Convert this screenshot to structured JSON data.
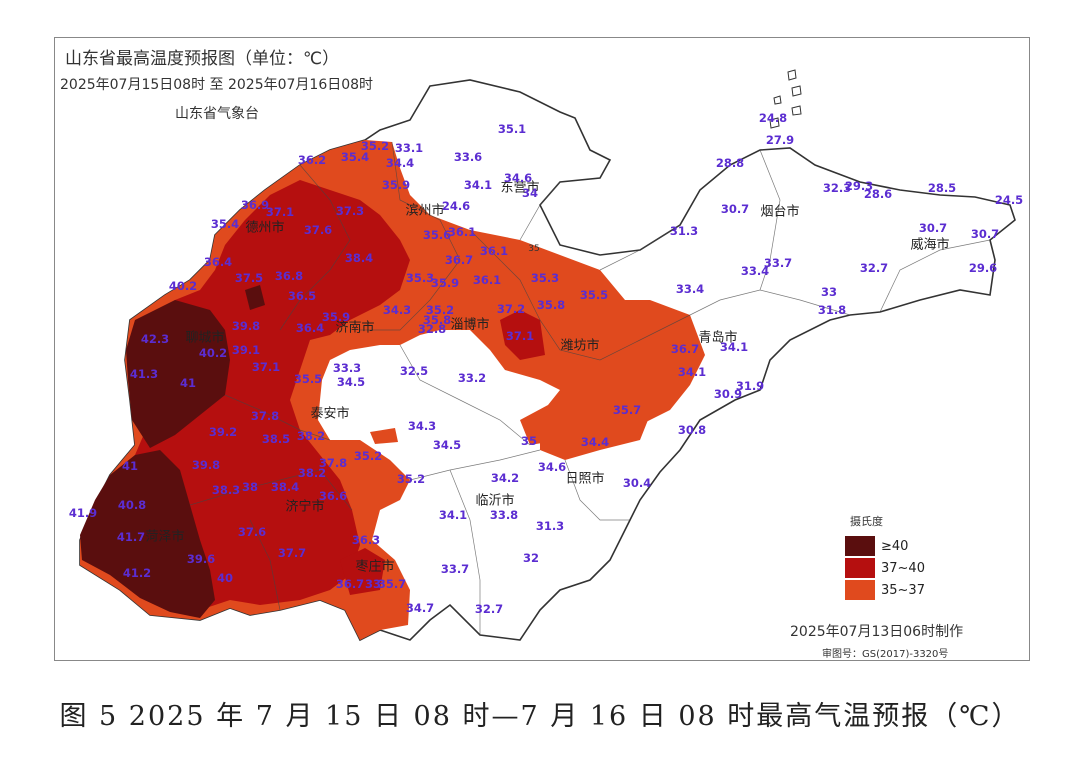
{
  "map": {
    "title": "山东省最高温度预报图（单位：℃）",
    "period": "2025年07月15日08时 至 2025年07月16日08时",
    "agency": "山东省气象台",
    "made_time": "2025年07月13日06时制作",
    "review_no": "审图号：GS(2017)-3320号",
    "legend": {
      "title": "摄氏度",
      "items": [
        {
          "label": "≥40",
          "color": "#5a0e0e"
        },
        {
          "label": "37~40",
          "color": "#b50f0f"
        },
        {
          "label": "35~37",
          "color": "#e04a1e"
        }
      ]
    },
    "cities": [
      "聊城市",
      "德州市",
      "济南市",
      "淄博市",
      "东营市",
      "滨州市",
      "潍坊市",
      "青岛市",
      "烟台市",
      "威海市",
      "日照市",
      "临沂市",
      "泰安市",
      "济宁市",
      "菏泽市",
      "枣庄市"
    ],
    "values": [
      "35.1",
      "33.1",
      "35.2",
      "33.6",
      "35.4",
      "34.4",
      "36.2",
      "34.6",
      "35.9",
      "34.1",
      "34",
      "36.9",
      "37.1",
      "37.3",
      "24.6",
      "35.4",
      "37.6",
      "36.4",
      "38.4",
      "35.6",
      "36.1",
      "37.5",
      "36.1",
      "36.7",
      "36.8",
      "40.2",
      "36.5",
      "35.3",
      "35.9",
      "35.2",
      "35.8",
      "36.4",
      "35.9",
      "34.3",
      "32.8",
      "37.2",
      "39.8",
      "42.3",
      "40.2",
      "39.1",
      "41.3",
      "41",
      "37.1",
      "33.3",
      "34.5",
      "32.5",
      "33.2",
      "35.5",
      "37.8",
      "38.5",
      "38.2",
      "34.3",
      "34.5",
      "39.2",
      "39.8",
      "41",
      "38.3",
      "38",
      "38.4",
      "37.8",
      "38.2",
      "36.6",
      "35.2",
      "35.2",
      "40.8",
      "41.9",
      "41.7",
      "37.6",
      "39.6",
      "41.2",
      "40",
      "37.7",
      "36.3",
      "36.7",
      "33",
      "35.7",
      "34.7",
      "33.7",
      "32.7",
      "34.1",
      "33.8",
      "31.3",
      "32",
      "34.2",
      "35",
      "34.6",
      "34.4",
      "30.4",
      "30.8",
      "35.7",
      "30.9",
      "31.9",
      "34.1",
      "36.7",
      "33.4",
      "34.1",
      "35.5",
      "35.8",
      "37.1",
      "35.3",
      "36.1",
      "31.3",
      "30.7",
      "28.8",
      "27.9",
      "24.8",
      "33.4",
      "33.7",
      "32.3",
      "29.3",
      "28.6",
      "28.5",
      "24.5",
      "30.7",
      "30.7",
      "29.6",
      "32.7",
      "33",
      "31.8"
    ],
    "small_marks": [
      "35"
    ]
  },
  "caption": "图 5 2025 年 7 月 15 日 08 时—7 月 16 日 08 时最高气温预报（℃）"
}
